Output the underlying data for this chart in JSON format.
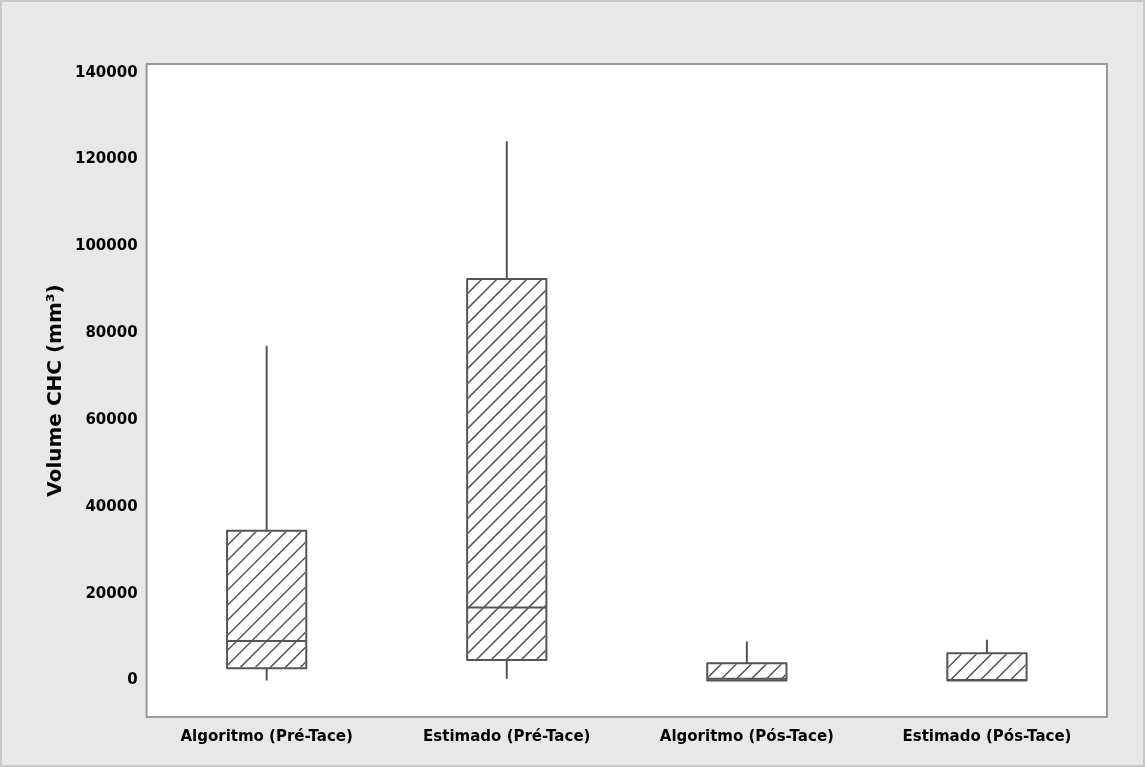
{
  "chart_data": {
    "type": "box",
    "ylabel": "Volume CHC (mm³)",
    "categories": [
      "Algoritmo (Pré-Tace)",
      "Estimado (Pré-Tace)",
      "Algoritmo (Pós-Tace)",
      "Estimado (Pós-Tace)"
    ],
    "boxes": [
      {
        "low": 0,
        "q1": 2800,
        "median": 9100,
        "q3": 34500,
        "high": 77100
      },
      {
        "low": 400,
        "q1": 4700,
        "median": 16800,
        "q3": 92500,
        "high": 124200
      },
      {
        "low": 0,
        "q1": 0,
        "median": 400,
        "q3": 4000,
        "high": 9000
      },
      {
        "low": 0,
        "q1": 0,
        "median": 100,
        "q3": 6300,
        "high": 9400
      }
    ],
    "color": "#555555",
    "ylim": [
      -8400,
      142000
    ],
    "yticks": [
      0,
      20000,
      40000,
      60000,
      80000,
      100000,
      120000,
      140000
    ],
    "grid": false,
    "legend": false
  }
}
